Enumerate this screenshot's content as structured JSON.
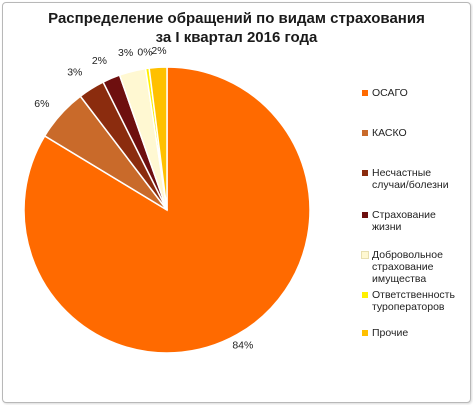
{
  "chart_data": {
    "type": "pie",
    "title_lines": [
      "Распределение обращений по видам страхования",
      "за I квартал 2016 года"
    ],
    "slices": [
      {
        "name": "ОСАГО",
        "value": 84,
        "label": "84%",
        "color": "#FF6A00"
      },
      {
        "name": "КАСКО",
        "value": 6,
        "label": "6%",
        "color": "#C96A2A"
      },
      {
        "name": "Несчастные случаи/болезни",
        "value": 3,
        "label": "3%",
        "color": "#8B2C0E"
      },
      {
        "name": "Страхование жизни",
        "value": 2,
        "label": "2%",
        "color": "#6E0F0F"
      },
      {
        "name": "Добровольное страхование имущества",
        "value": 3,
        "label": "3%",
        "color": "#FFF8D2"
      },
      {
        "name": "Ответственность туроператоров",
        "value": 0.4,
        "label": "0%",
        "color": "#FFF000"
      },
      {
        "name": "Прочие",
        "value": 2,
        "label": "2%",
        "color": "#FFC000"
      }
    ],
    "legend_position": "right"
  }
}
